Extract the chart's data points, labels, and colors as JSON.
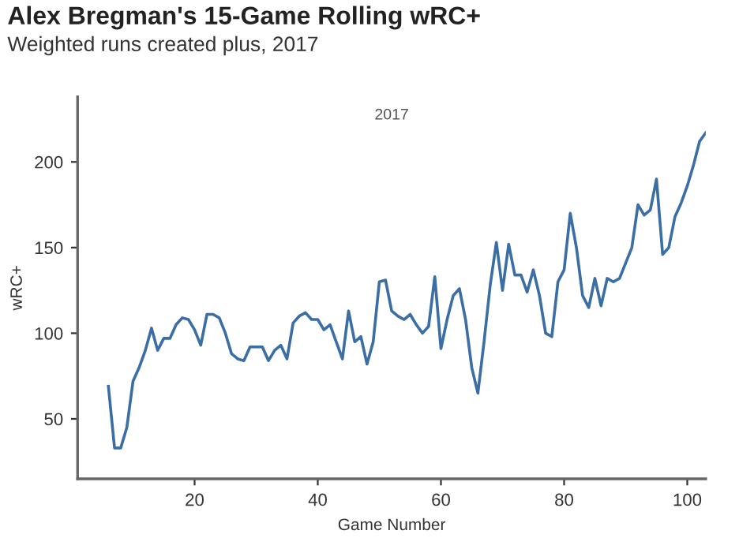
{
  "chart_data": {
    "type": "line",
    "title": "Alex Bregman's 15-Game Rolling wRC+",
    "subtitle": "Weighted runs created plus, 2017",
    "xlabel": "Game Number",
    "ylabel": "wRC+",
    "annotations": [
      "2017"
    ],
    "x": [
      6,
      7,
      8,
      9,
      10,
      11,
      12,
      13,
      14,
      15,
      16,
      17,
      18,
      19,
      20,
      21,
      22,
      23,
      24,
      25,
      26,
      27,
      28,
      29,
      30,
      31,
      32,
      33,
      34,
      35,
      36,
      37,
      38,
      39,
      40,
      41,
      42,
      43,
      44,
      45,
      46,
      47,
      48,
      49,
      50,
      51,
      52,
      53,
      54,
      55,
      56,
      57,
      58,
      59,
      60,
      61,
      62,
      63,
      64,
      65,
      66,
      67,
      68,
      69,
      70,
      71,
      72,
      73,
      74,
      75,
      76,
      77,
      78,
      79,
      80,
      81,
      82,
      83,
      84,
      85,
      86,
      87,
      88,
      89,
      90,
      91,
      92,
      93,
      94,
      95,
      96,
      97,
      98,
      99,
      100,
      101,
      102,
      103
    ],
    "series": [
      {
        "color": "#3a6ea5",
        "values": [
          69,
          33,
          33,
          45,
          72,
          80,
          90,
          103,
          90,
          97,
          97,
          105,
          109,
          108,
          102,
          93,
          111,
          111,
          109,
          100,
          88,
          85,
          84,
          92,
          92,
          92,
          84,
          90,
          93,
          85,
          106,
          110,
          112,
          108,
          108,
          102,
          105,
          95,
          85,
          113,
          95,
          98,
          82,
          95,
          130,
          131,
          113,
          110,
          108,
          111,
          105,
          100,
          104,
          133,
          91,
          108,
          122,
          126,
          108,
          80,
          65,
          95,
          128,
          153,
          125,
          152,
          134,
          134,
          124,
          137,
          122,
          100,
          98,
          130,
          137,
          170,
          150,
          122,
          115,
          132,
          116,
          132,
          130,
          132,
          141,
          150,
          175,
          169,
          172,
          190,
          146,
          150,
          168,
          176,
          186,
          198,
          212,
          217
        ]
      }
    ],
    "xlim": [
      1,
      103
    ],
    "ylim": [
      15,
      238
    ],
    "xticks": [
      20,
      40,
      60,
      80,
      100
    ],
    "yticks": [
      50,
      100,
      150,
      200
    ],
    "grid": false,
    "legend": false,
    "marker": "none",
    "line_style": "solid"
  }
}
